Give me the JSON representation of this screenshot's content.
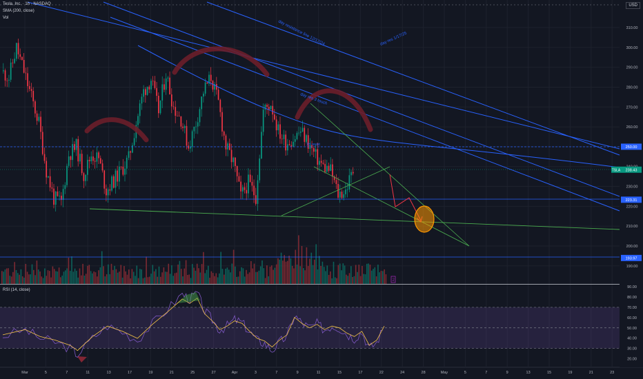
{
  "header": {
    "symbol_line": "Tesla, Inc. · 1h · NASDAQ",
    "indicator_1": "SMA (200, close)",
    "indicator_2": "Vol",
    "currency": "USD"
  },
  "rsi_panel": {
    "title": "RSI (14, close)",
    "yticks": [
      90,
      80,
      70,
      60,
      50,
      40,
      30,
      20
    ],
    "ylim": [
      18,
      92
    ],
    "overbought": 70,
    "oversold": 30,
    "mid": 50
  },
  "chart_data": {
    "type": "candlestick",
    "ylabel": "",
    "ylim": [
      183,
      322
    ],
    "y_ticks": [
      190,
      200,
      210,
      220,
      230,
      240,
      250,
      260,
      270,
      280,
      290,
      300,
      310
    ],
    "x_ticks": [
      "Mar",
      "5",
      "7",
      "11",
      "13",
      "17",
      "19",
      "21",
      "25",
      "27",
      "Apr",
      "3",
      "7",
      "9",
      "11",
      "15",
      "17",
      "22",
      "24",
      "28",
      "May",
      "5",
      "7",
      "9",
      "13",
      "15",
      "19",
      "21",
      "23"
    ],
    "price_labels": [
      {
        "value": 250.0,
        "text": "250.00",
        "color": "#2962ff"
      },
      {
        "value": 238.43,
        "text": "238.43",
        "color": "#089981",
        "tag": "TSLA"
      },
      {
        "value": 223.31,
        "text": "223.31",
        "color": "#2962ff"
      },
      {
        "value": 193.97,
        "text": "193.97",
        "color": "#2962ff"
      }
    ],
    "annotations": [
      {
        "text": "day resistance line 12/17/24"
      },
      {
        "text": "day res 1/17/25"
      },
      {
        "text": "day res 3 touch"
      },
      {
        "text": "1H resist"
      },
      {
        "text": "2"
      }
    ],
    "price_path": [
      {
        "x": 0,
        "y": 288
      },
      {
        "x": 2,
        "y": 285
      },
      {
        "x": 4,
        "y": 300
      },
      {
        "x": 5,
        "y": 288
      },
      {
        "x": 7,
        "y": 275
      },
      {
        "x": 9,
        "y": 262
      },
      {
        "x": 10,
        "y": 238
      },
      {
        "x": 11,
        "y": 224
      },
      {
        "x": 12,
        "y": 222
      },
      {
        "x": 13,
        "y": 246
      },
      {
        "x": 14,
        "y": 250
      },
      {
        "x": 15,
        "y": 236
      },
      {
        "x": 16,
        "y": 246
      },
      {
        "x": 17,
        "y": 244
      },
      {
        "x": 18,
        "y": 228
      },
      {
        "x": 19,
        "y": 233
      },
      {
        "x": 20,
        "y": 238
      },
      {
        "x": 21,
        "y": 244
      },
      {
        "x": 22,
        "y": 262
      },
      {
        "x": 23,
        "y": 278
      },
      {
        "x": 24,
        "y": 284
      },
      {
        "x": 25,
        "y": 268
      },
      {
        "x": 26,
        "y": 287
      },
      {
        "x": 27,
        "y": 270
      },
      {
        "x": 28,
        "y": 264
      },
      {
        "x": 29,
        "y": 250
      },
      {
        "x": 30,
        "y": 262
      },
      {
        "x": 31,
        "y": 278
      },
      {
        "x": 32,
        "y": 285
      },
      {
        "x": 33,
        "y": 272
      },
      {
        "x": 34,
        "y": 250
      },
      {
        "x": 35,
        "y": 242
      },
      {
        "x": 36,
        "y": 225
      },
      {
        "x": 37,
        "y": 232
      },
      {
        "x": 38,
        "y": 225
      },
      {
        "x": 39,
        "y": 268
      },
      {
        "x": 40,
        "y": 272
      },
      {
        "x": 41,
        "y": 258
      },
      {
        "x": 42,
        "y": 252
      },
      {
        "x": 43,
        "y": 254
      },
      {
        "x": 44,
        "y": 258
      },
      {
        "x": 45,
        "y": 252
      },
      {
        "x": 46,
        "y": 245
      },
      {
        "x": 47,
        "y": 240
      },
      {
        "x": 48,
        "y": 238
      },
      {
        "x": 49,
        "y": 226
      },
      {
        "x": 50,
        "y": 228
      },
      {
        "x": 51,
        "y": 238
      }
    ],
    "rsi_path": [
      {
        "x": 0,
        "y": 42
      },
      {
        "x": 3,
        "y": 48
      },
      {
        "x": 5,
        "y": 40
      },
      {
        "x": 7,
        "y": 36
      },
      {
        "x": 9,
        "y": 30
      },
      {
        "x": 10,
        "y": 24
      },
      {
        "x": 12,
        "y": 40
      },
      {
        "x": 14,
        "y": 52
      },
      {
        "x": 16,
        "y": 46
      },
      {
        "x": 18,
        "y": 38
      },
      {
        "x": 20,
        "y": 54
      },
      {
        "x": 22,
        "y": 68
      },
      {
        "x": 24,
        "y": 83
      },
      {
        "x": 25,
        "y": 78
      },
      {
        "x": 26,
        "y": 84
      },
      {
        "x": 27,
        "y": 66
      },
      {
        "x": 28,
        "y": 58
      },
      {
        "x": 29,
        "y": 48
      },
      {
        "x": 30,
        "y": 52
      },
      {
        "x": 31,
        "y": 58
      },
      {
        "x": 32,
        "y": 55
      },
      {
        "x": 33,
        "y": 46
      },
      {
        "x": 34,
        "y": 38
      },
      {
        "x": 35,
        "y": 35
      },
      {
        "x": 36,
        "y": 28
      },
      {
        "x": 37,
        "y": 36
      },
      {
        "x": 38,
        "y": 42
      },
      {
        "x": 39,
        "y": 62
      },
      {
        "x": 40,
        "y": 55
      },
      {
        "x": 41,
        "y": 50
      },
      {
        "x": 42,
        "y": 54
      },
      {
        "x": 43,
        "y": 48
      },
      {
        "x": 44,
        "y": 52
      },
      {
        "x": 45,
        "y": 50
      },
      {
        "x": 46,
        "y": 44
      },
      {
        "x": 47,
        "y": 40
      },
      {
        "x": 48,
        "y": 46
      },
      {
        "x": 49,
        "y": 30
      },
      {
        "x": 50,
        "y": 36
      },
      {
        "x": 51,
        "y": 52
      }
    ]
  }
}
